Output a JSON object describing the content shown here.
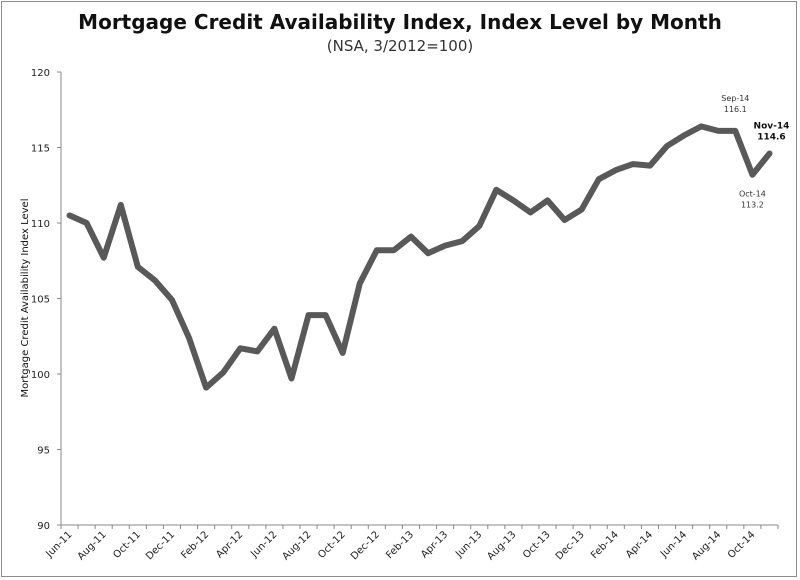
{
  "chart_data": {
    "type": "line",
    "title": "Mortgage Credit Availability Index, Index Level by Month",
    "subtitle": "(NSA, 3/2012=100)",
    "xlabel": "",
    "ylabel": "Mortgage Credit Availability Index Level",
    "ylim": [
      90,
      120
    ],
    "yticks": [
      90,
      95,
      100,
      105,
      110,
      115,
      120
    ],
    "grid": false,
    "legend": "none",
    "line_color": "#595959",
    "x": [
      "Jun-11",
      "Jul-11",
      "Aug-11",
      "Sep-11",
      "Oct-11",
      "Nov-11",
      "Dec-11",
      "Jan-12",
      "Feb-12",
      "Mar-12",
      "Apr-12",
      "May-12",
      "Jun-12",
      "Jul-12",
      "Aug-12",
      "Sep-12",
      "Oct-12",
      "Nov-12",
      "Dec-12",
      "Jan-13",
      "Feb-13",
      "Mar-13",
      "Apr-13",
      "May-13",
      "Jun-13",
      "Jul-13",
      "Aug-13",
      "Sep-13",
      "Oct-13",
      "Nov-13",
      "Dec-13",
      "Jan-14",
      "Feb-14",
      "Mar-14",
      "Apr-14",
      "May-14",
      "Jun-14",
      "Jul-14",
      "Aug-14",
      "Sep-14",
      "Oct-14",
      "Nov-14"
    ],
    "xtick_labels": [
      "Jun-11",
      "Aug-11",
      "Oct-11",
      "Dec-11",
      "Feb-12",
      "Apr-12",
      "Jun-12",
      "Aug-12",
      "Oct-12",
      "Dec-12",
      "Feb-13",
      "Apr-13",
      "Jun-13",
      "Aug-13",
      "Oct-13",
      "Dec-13",
      "Feb-14",
      "Apr-14",
      "Jun-14",
      "Aug-14",
      "Oct-14"
    ],
    "series": [
      {
        "values": [
          110.5,
          110.0,
          107.7,
          111.2,
          107.1,
          106.2,
          104.9,
          102.4,
          99.1,
          100.1,
          101.7,
          101.5,
          103.0,
          99.7,
          103.9,
          103.9,
          101.4,
          106.0,
          108.2,
          108.2,
          109.1,
          108.0,
          108.5,
          108.8,
          109.8,
          112.2,
          111.5,
          110.7,
          111.5,
          110.2,
          110.9,
          112.9,
          113.5,
          113.9,
          113.8,
          115.1,
          115.8,
          116.4,
          116.1,
          116.1,
          113.2,
          114.6
        ]
      }
    ],
    "annotations": [
      {
        "x": "Sep-14",
        "lines": [
          "Sep-14",
          "116.1"
        ],
        "style": "normal"
      },
      {
        "x": "Oct-14",
        "lines": [
          "Oct-14",
          "113.2"
        ],
        "style": "normal"
      },
      {
        "x": "Nov-14",
        "lines": [
          "Nov-14",
          "114.6"
        ],
        "style": "bold"
      }
    ]
  }
}
